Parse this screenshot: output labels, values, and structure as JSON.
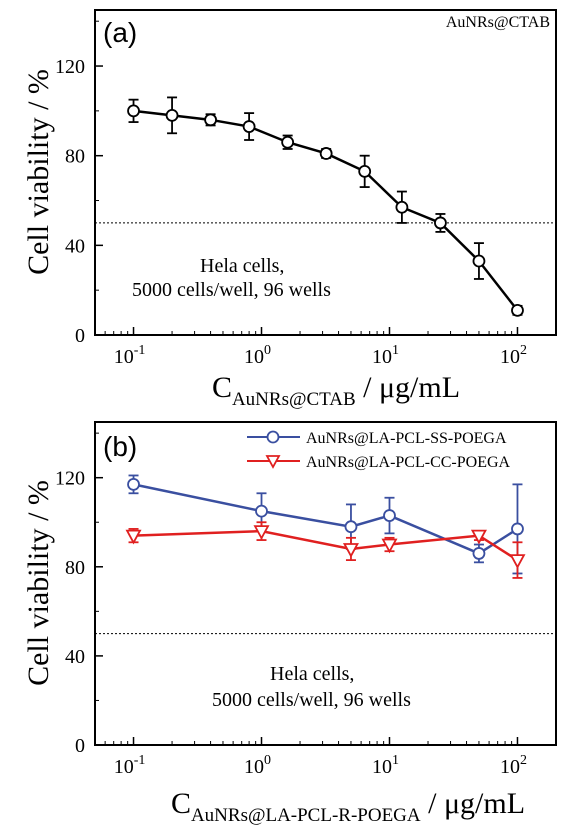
{
  "chart_data": [
    {
      "type": "line",
      "panel_label": "(a)",
      "corner_label": "AuNRs@CTAB",
      "xlabel": {
        "main": "C",
        "sub": "AuNRs@CTAB",
        "unit": " / μg/mL"
      },
      "ylabel": "Cell viability / %",
      "x_scale": "log",
      "xlim": [
        0.05,
        200
      ],
      "ylim": [
        0,
        145
      ],
      "x_ticks": [
        {
          "value": 0.1,
          "base": "10",
          "exp": "-1"
        },
        {
          "value": 1,
          "base": "10",
          "exp": "0"
        },
        {
          "value": 10,
          "base": "10",
          "exp": "1"
        },
        {
          "value": 100,
          "base": "10",
          "exp": "2"
        }
      ],
      "y_ticks": [
        0,
        40,
        80,
        120
      ],
      "reference_line": 50,
      "annotation": [
        "Hela cells,",
        "5000 cells/well, 96 wells"
      ],
      "series": [
        {
          "color": "#000000",
          "marker": "circle",
          "x": [
            0.1,
            0.2,
            0.4,
            0.8,
            1.6,
            3.2,
            6.4,
            12.5,
            25,
            50,
            100
          ],
          "y": [
            100,
            98,
            96,
            93,
            86,
            81,
            73,
            57,
            50,
            33,
            11
          ],
          "err": [
            5,
            8,
            2.5,
            6,
            3,
            2,
            7,
            7,
            4,
            8,
            2
          ]
        }
      ]
    },
    {
      "type": "line",
      "panel_label": "(b)",
      "xlabel": {
        "main": "C",
        "sub": "AuNRs@LA-PCL-R-POEGA",
        "unit": " / μg/mL"
      },
      "ylabel": "Cell viability / %",
      "x_scale": "log",
      "xlim": [
        0.05,
        200
      ],
      "ylim": [
        0,
        145
      ],
      "x_ticks": [
        {
          "value": 0.1,
          "base": "10",
          "exp": "-1"
        },
        {
          "value": 1,
          "base": "10",
          "exp": "0"
        },
        {
          "value": 10,
          "base": "10",
          "exp": "1"
        },
        {
          "value": 100,
          "base": "10",
          "exp": "2"
        }
      ],
      "y_ticks": [
        0,
        40,
        80,
        120
      ],
      "reference_line": 50,
      "annotation": [
        "Hela cells,",
        "5000 cells/well, 96 wells"
      ],
      "legend_position": "top-right",
      "series": [
        {
          "name": "AuNRs@LA-PCL-SS-POEGA",
          "color": "#3a4fa0",
          "marker": "circle",
          "x": [
            0.1,
            1,
            5,
            10,
            50,
            100
          ],
          "y": [
            117,
            105,
            98,
            103,
            86,
            97
          ],
          "err": [
            4,
            8,
            10,
            8,
            4,
            20
          ]
        },
        {
          "name": "AuNRs@LA-PCL-CC-POEGA",
          "color": "#e02020",
          "marker": "triangle-down",
          "x": [
            0.1,
            1,
            5,
            10,
            50,
            100
          ],
          "y": [
            94,
            96,
            88,
            90,
            94,
            83
          ],
          "err": [
            3,
            4,
            5,
            3,
            2,
            8
          ]
        }
      ]
    }
  ]
}
